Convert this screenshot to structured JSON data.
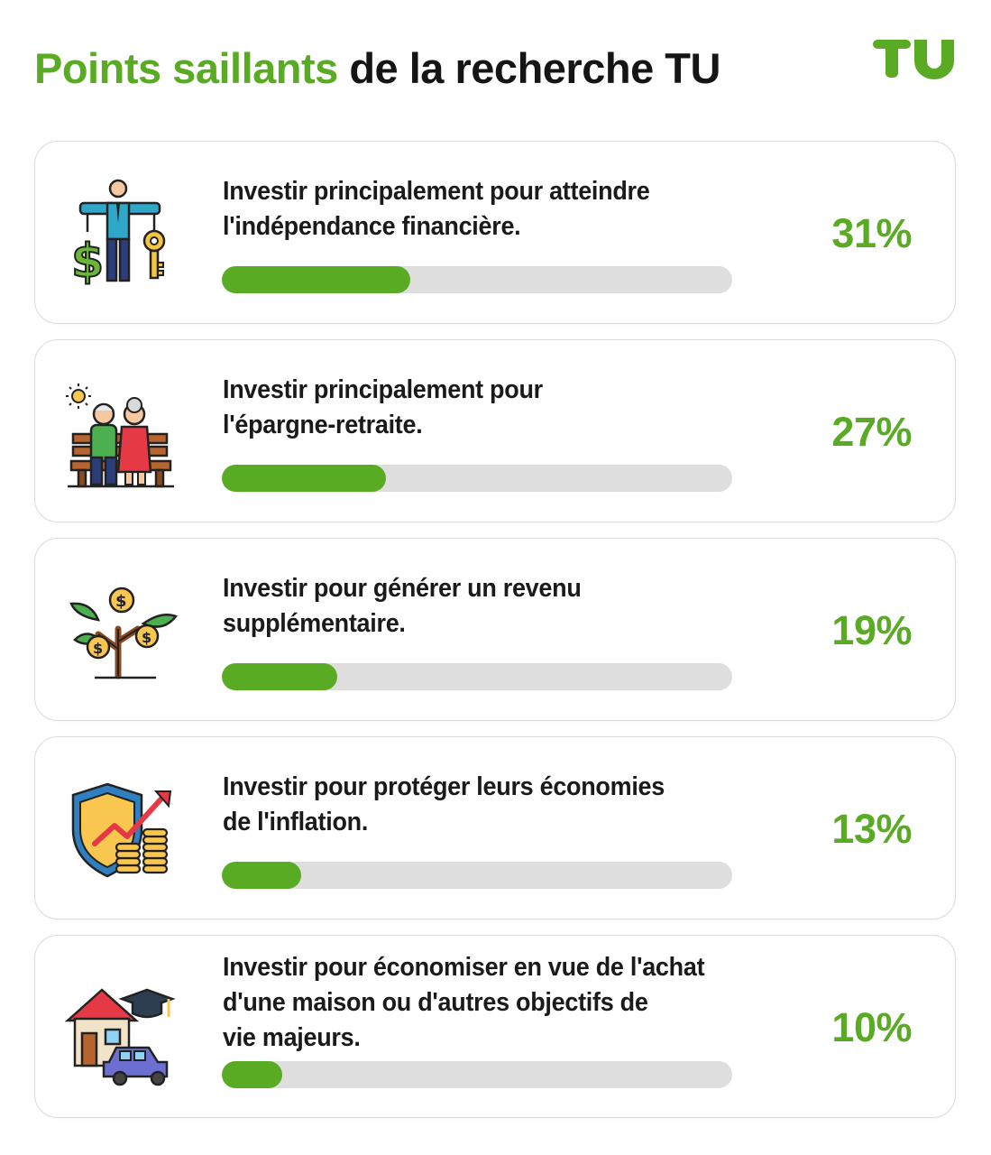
{
  "header": {
    "accent": "Points saillants",
    "rest": "de la recherche TU"
  },
  "logo": {
    "text": "TU",
    "color": "#5aab24"
  },
  "colors": {
    "accent": "#5aab24",
    "track": "#dedede",
    "text": "#1a1a1a"
  },
  "chart_data": {
    "type": "bar",
    "orientation": "horizontal",
    "categories": [
      "Investir principalement pour atteindre l'indépendance financière.",
      "Investir principalement pour l'épargne-retraite.",
      "Investir pour générer un revenu supplémentaire.",
      "Investir pour protéger leurs économies de l'inflation.",
      "Investir pour économiser en vue de l'achat d'une maison ou d'autres objectifs de vie majeurs."
    ],
    "values": [
      31,
      27,
      19,
      13,
      10
    ],
    "value_labels": [
      "31%",
      "27%",
      "19%",
      "13%",
      "10%"
    ],
    "unit": "%",
    "xlim": [
      0,
      84
    ]
  },
  "items": [
    {
      "label_lines": [
        "Investir principalement pour atteindre",
        "l'indépendance financière."
      ],
      "pct": "31%",
      "icon": "financial-independence-icon"
    },
    {
      "label_lines": [
        "Investir principalement pour",
        "l'épargne-retraite."
      ],
      "pct": "27%",
      "icon": "retired-couple-bench-icon"
    },
    {
      "label_lines": [
        "Investir pour générer un revenu",
        "supplémentaire."
      ],
      "pct": "19%",
      "icon": "money-tree-icon"
    },
    {
      "label_lines": [
        "Investir pour protéger leurs économies",
        "de l'inflation."
      ],
      "pct": "13%",
      "icon": "shield-coins-growth-icon"
    },
    {
      "label_lines": [
        "Investir pour économiser en vue de l'achat",
        "d'une maison ou d'autres objectifs de",
        "vie majeurs."
      ],
      "pct": "10%",
      "icon": "house-car-graduation-icon"
    }
  ]
}
